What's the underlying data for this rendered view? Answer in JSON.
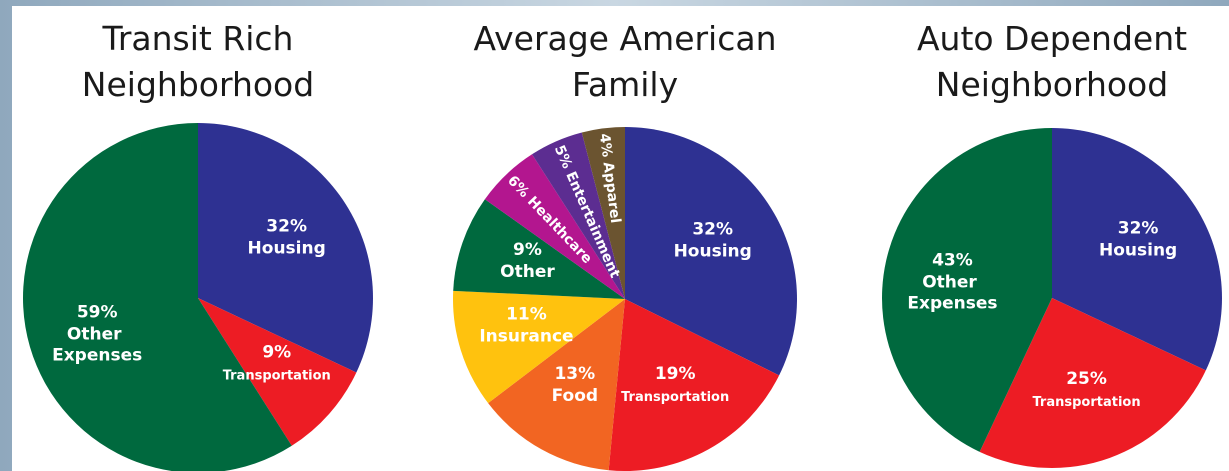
{
  "chart_data": [
    {
      "type": "pie",
      "title": [
        "Transit Rich",
        "Neighborhood"
      ],
      "categories": [
        "Housing",
        "Transportation",
        "Other Expenses"
      ],
      "values": [
        32,
        9,
        59
      ],
      "value_labels": [
        "32%",
        "9%",
        "59%"
      ],
      "colors": [
        "#2e3192",
        "#ed1c24",
        "#00693e"
      ]
    },
    {
      "type": "pie",
      "title": [
        "Average American",
        "Family"
      ],
      "categories": [
        "Housing",
        "Transportation",
        "Food",
        "Insurance",
        "Other",
        "Healthcare",
        "Entertainment",
        "Apparel"
      ],
      "values": [
        32,
        19,
        13,
        11,
        9,
        6,
        5,
        4
      ],
      "value_labels": [
        "32%",
        "19%",
        "13%",
        "11%",
        "9%",
        "6%",
        "5%",
        "4%"
      ],
      "colors": [
        "#2e3192",
        "#ed1c24",
        "#f26522",
        "#ffc20e",
        "#00693e",
        "#b3168f",
        "#5c2d91",
        "#6b5430"
      ]
    },
    {
      "type": "pie",
      "title": [
        "Auto Dependent",
        "Neighborhood"
      ],
      "categories": [
        "Housing",
        "Transportation",
        "Other Expenses"
      ],
      "values": [
        32,
        25,
        43
      ],
      "value_labels": [
        "32%",
        "25%",
        "43%"
      ],
      "colors": [
        "#2e3192",
        "#ed1c24",
        "#00693e"
      ]
    }
  ]
}
